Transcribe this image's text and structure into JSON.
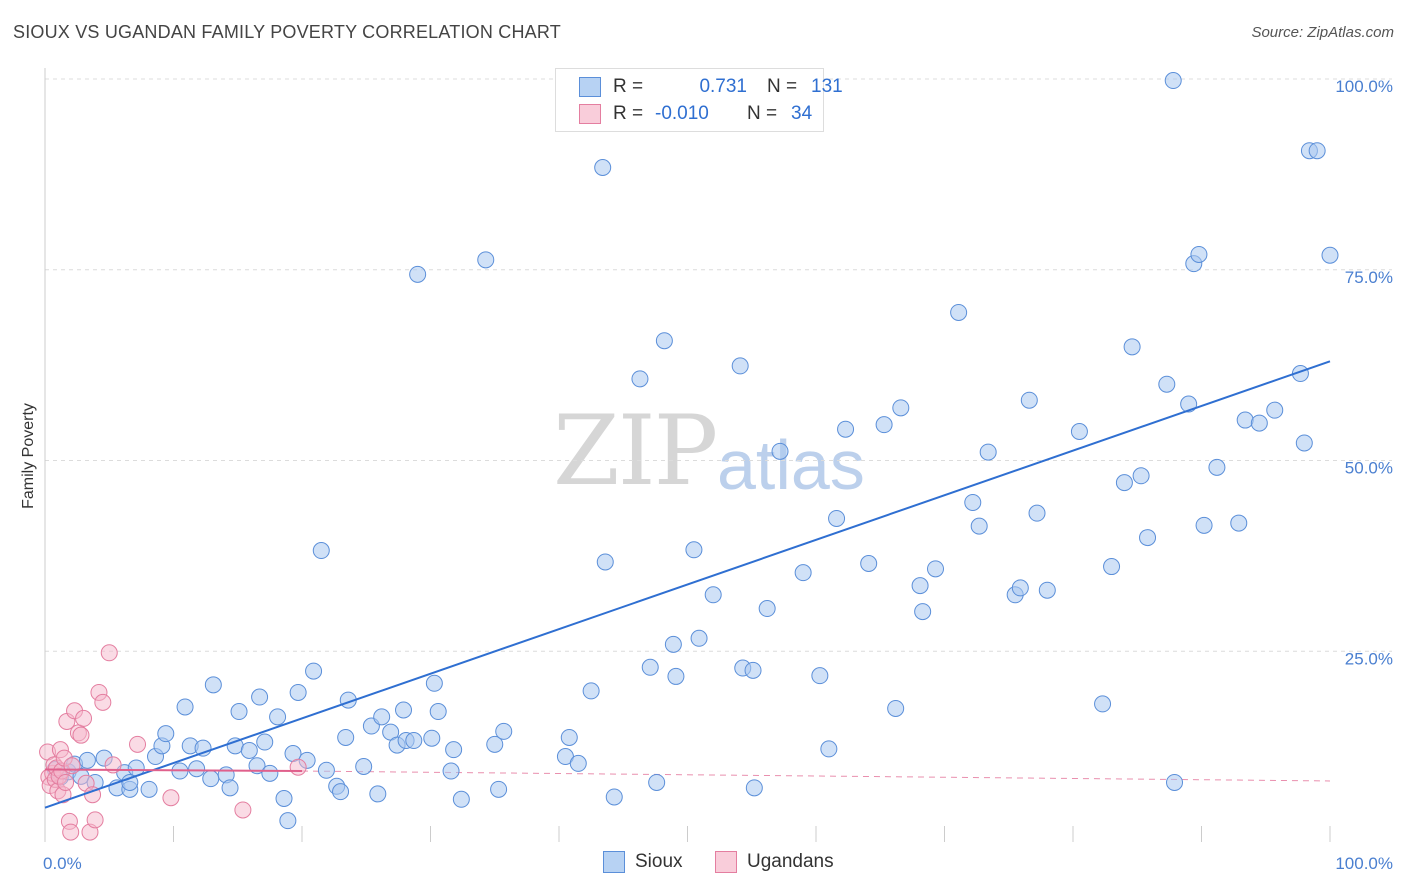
{
  "title": "SIOUX VS UGANDAN FAMILY POVERTY CORRELATION CHART",
  "source": "Source: ZipAtlas.com",
  "watermark": {
    "zip": "ZIP",
    "atlas": "atlas"
  },
  "legend_top": {
    "rows": [
      {
        "r_label": "R =",
        "r_value": "0.731",
        "n_label": "N =",
        "n_value": "131"
      },
      {
        "r_label": "R =",
        "r_value": "-0.010",
        "n_label": "N =",
        "n_value": "34"
      }
    ]
  },
  "legend_bottom": {
    "sioux": "Sioux",
    "ugandans": "Ugandans"
  },
  "colors": {
    "sioux_fill": "#a9c8f0",
    "sioux_stroke": "#5b8fd9",
    "sioux_line": "#2f6fd1",
    "ug_fill": "#f6b8cb",
    "ug_stroke": "#e47ea0",
    "ug_line": "#e0608c"
  },
  "chart_data": {
    "type": "scatter",
    "title": "SIOUX VS UGANDAN FAMILY POVERTY CORRELATION CHART",
    "xlabel": "",
    "ylabel": "Family Poverty",
    "xlim": [
      0,
      100
    ],
    "ylim": [
      0,
      100
    ],
    "x_tick_labels": [
      "0.0%",
      "100.0%"
    ],
    "y_tick_labels": [
      "25.0%",
      "50.0%",
      "75.0%",
      "100.0%"
    ],
    "y_ticks": [
      25,
      50,
      75,
      100
    ],
    "series": [
      {
        "name": "Sioux",
        "r": 0.731,
        "n": 131,
        "trend": {
          "x": [
            0,
            100
          ],
          "y": [
            4.5,
            63
          ]
        },
        "points": [
          [
            0.8,
            9.5
          ],
          [
            1.2,
            8.5
          ],
          [
            1.8,
            9.2
          ],
          [
            2.3,
            10.2
          ],
          [
            2.8,
            8.6
          ],
          [
            3.3,
            10.7
          ],
          [
            3.9,
            7.8
          ],
          [
            4.6,
            11.0
          ],
          [
            5.6,
            7.1
          ],
          [
            6.2,
            9.1
          ],
          [
            6.6,
            6.9
          ],
          [
            6.6,
            7.8
          ],
          [
            7.1,
            9.7
          ],
          [
            8.1,
            6.9
          ],
          [
            8.6,
            11.2
          ],
          [
            9.1,
            12.6
          ],
          [
            9.4,
            14.2
          ],
          [
            10.5,
            9.3
          ],
          [
            10.9,
            17.7
          ],
          [
            11.3,
            12.6
          ],
          [
            11.8,
            9.6
          ],
          [
            12.3,
            12.3
          ],
          [
            12.9,
            8.3
          ],
          [
            13.1,
            20.6
          ],
          [
            14.1,
            8.8
          ],
          [
            14.4,
            7.1
          ],
          [
            14.8,
            12.6
          ],
          [
            15.1,
            17.1
          ],
          [
            15.9,
            12.0
          ],
          [
            16.5,
            10.0
          ],
          [
            16.7,
            19.0
          ],
          [
            17.1,
            13.1
          ],
          [
            17.5,
            9.0
          ],
          [
            18.1,
            16.4
          ],
          [
            18.6,
            5.7
          ],
          [
            18.9,
            2.8
          ],
          [
            19.3,
            11.6
          ],
          [
            19.7,
            19.6
          ],
          [
            20.4,
            10.7
          ],
          [
            20.9,
            22.4
          ],
          [
            21.5,
            38.2
          ],
          [
            21.9,
            9.4
          ],
          [
            22.7,
            7.3
          ],
          [
            23.0,
            6.6
          ],
          [
            23.4,
            13.7
          ],
          [
            23.6,
            18.6
          ],
          [
            24.8,
            9.9
          ],
          [
            25.4,
            15.2
          ],
          [
            25.9,
            6.3
          ],
          [
            26.2,
            16.4
          ],
          [
            26.9,
            14.4
          ],
          [
            27.4,
            12.7
          ],
          [
            27.9,
            17.3
          ],
          [
            28.1,
            13.3
          ],
          [
            28.7,
            13.3
          ],
          [
            29.0,
            74.4
          ],
          [
            30.1,
            13.6
          ],
          [
            30.3,
            20.8
          ],
          [
            30.6,
            17.1
          ],
          [
            31.6,
            9.3
          ],
          [
            31.8,
            12.1
          ],
          [
            32.4,
            5.6
          ],
          [
            34.3,
            76.3
          ],
          [
            35.0,
            12.8
          ],
          [
            35.3,
            6.9
          ],
          [
            35.7,
            14.5
          ],
          [
            40.5,
            11.2
          ],
          [
            40.8,
            13.7
          ],
          [
            41.5,
            10.3
          ],
          [
            42.5,
            19.8
          ],
          [
            43.4,
            88.4
          ],
          [
            43.6,
            36.7
          ],
          [
            44.3,
            5.9
          ],
          [
            46.3,
            60.7
          ],
          [
            47.1,
            22.9
          ],
          [
            47.6,
            7.8
          ],
          [
            48.2,
            65.7
          ],
          [
            48.9,
            25.9
          ],
          [
            49.1,
            21.7
          ],
          [
            50.5,
            38.3
          ],
          [
            50.9,
            26.7
          ],
          [
            52.0,
            32.4
          ],
          [
            54.1,
            62.4
          ],
          [
            54.3,
            22.8
          ],
          [
            55.1,
            22.5
          ],
          [
            55.2,
            7.1
          ],
          [
            56.2,
            30.6
          ],
          [
            57.2,
            51.2
          ],
          [
            59.0,
            35.3
          ],
          [
            60.3,
            21.8
          ],
          [
            61.0,
            12.2
          ],
          [
            61.6,
            42.4
          ],
          [
            62.3,
            54.1
          ],
          [
            64.1,
            36.5
          ],
          [
            65.3,
            54.7
          ],
          [
            66.2,
            17.5
          ],
          [
            66.6,
            56.9
          ],
          [
            68.1,
            33.6
          ],
          [
            68.3,
            30.2
          ],
          [
            69.3,
            35.8
          ],
          [
            71.1,
            69.4
          ],
          [
            72.2,
            44.5
          ],
          [
            72.7,
            41.4
          ],
          [
            73.4,
            51.1
          ],
          [
            75.5,
            32.4
          ],
          [
            75.9,
            33.3
          ],
          [
            76.6,
            57.9
          ],
          [
            77.2,
            43.1
          ],
          [
            78.0,
            33.0
          ],
          [
            80.5,
            53.8
          ],
          [
            82.3,
            18.1
          ],
          [
            83.0,
            36.1
          ],
          [
            84.0,
            47.1
          ],
          [
            84.6,
            64.9
          ],
          [
            85.3,
            48.0
          ],
          [
            85.8,
            39.9
          ],
          [
            87.3,
            60.0
          ],
          [
            87.8,
            99.8
          ],
          [
            87.9,
            7.8
          ],
          [
            89.0,
            57.4
          ],
          [
            89.4,
            75.8
          ],
          [
            89.8,
            77.0
          ],
          [
            90.2,
            41.5
          ],
          [
            91.2,
            49.1
          ],
          [
            92.9,
            41.8
          ],
          [
            93.4,
            55.3
          ],
          [
            94.5,
            54.9
          ],
          [
            95.7,
            56.6
          ],
          [
            97.7,
            61.4
          ],
          [
            98.0,
            52.3
          ],
          [
            98.4,
            90.6
          ],
          [
            99.0,
            90.6
          ],
          [
            100.0,
            76.9
          ]
        ]
      },
      {
        "name": "Ugandans",
        "r": -0.01,
        "n": 34,
        "trend": {
          "x": [
            0,
            20
          ],
          "y": [
            9.5,
            9.3
          ]
        },
        "trend_extension": {
          "x": [
            20,
            100
          ],
          "y": [
            9.3,
            8.0
          ]
        },
        "points": [
          [
            0.2,
            11.8
          ],
          [
            0.3,
            8.5
          ],
          [
            0.4,
            7.4
          ],
          [
            0.6,
            9.0
          ],
          [
            0.7,
            10.1
          ],
          [
            0.8,
            8.2
          ],
          [
            0.9,
            9.7
          ],
          [
            1.0,
            6.7
          ],
          [
            1.1,
            8.6
          ],
          [
            1.2,
            12.1
          ],
          [
            1.3,
            9.3
          ],
          [
            1.4,
            6.2
          ],
          [
            1.5,
            11.0
          ],
          [
            1.6,
            7.8
          ],
          [
            1.7,
            15.8
          ],
          [
            1.9,
            2.7
          ],
          [
            2.0,
            1.3
          ],
          [
            2.1,
            10.0
          ],
          [
            2.3,
            17.2
          ],
          [
            2.6,
            14.3
          ],
          [
            2.8,
            14.0
          ],
          [
            3.0,
            16.2
          ],
          [
            3.2,
            7.7
          ],
          [
            3.5,
            1.3
          ],
          [
            3.7,
            6.2
          ],
          [
            3.9,
            2.9
          ],
          [
            4.2,
            19.6
          ],
          [
            4.5,
            18.3
          ],
          [
            5.0,
            24.8
          ],
          [
            5.3,
            10.1
          ],
          [
            7.2,
            12.8
          ],
          [
            9.8,
            5.8
          ],
          [
            15.4,
            4.2
          ],
          [
            19.7,
            9.8
          ]
        ]
      }
    ]
  }
}
